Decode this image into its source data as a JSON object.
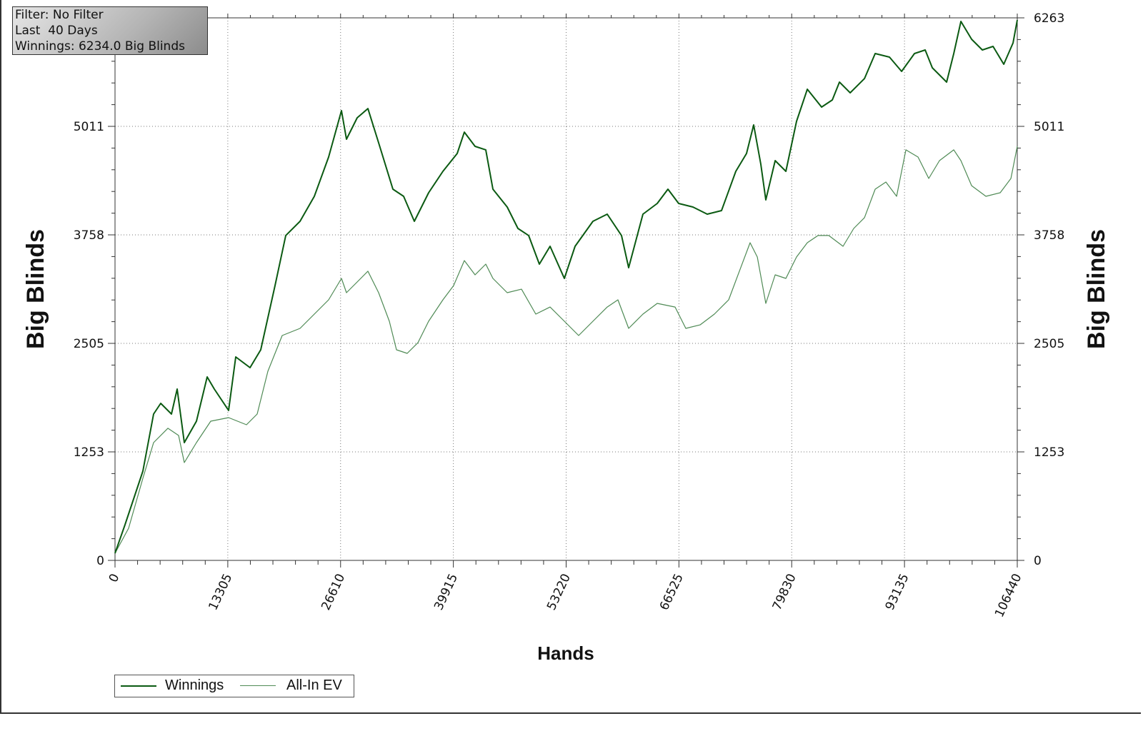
{
  "info_box": {
    "filter": "Filter: No Filter",
    "period": "Last  40 Days",
    "winnings": "Winnings: 6234.0 Big Blinds"
  },
  "chart_data": {
    "type": "line",
    "xlabel": "Hands",
    "ylabel": "Big Blinds",
    "ylabel_right": "Big Blinds",
    "xlim": [
      0,
      106440
    ],
    "ylim": [
      0,
      6263
    ],
    "x_ticks": [
      "0",
      "13305",
      "26610",
      "39915",
      "53220",
      "66525",
      "79830",
      "93135",
      "106440"
    ],
    "y_ticks": [
      "0",
      "1253",
      "2505",
      "3758",
      "5011",
      "6263"
    ],
    "grid": true,
    "legend_placement": "bottom-left",
    "series": [
      {
        "name": "Winnings",
        "color": "#0b5a12",
        "points": [
          [
            0,
            82
          ],
          [
            1180,
            412
          ],
          [
            3287,
            1030
          ],
          [
            4551,
            1689
          ],
          [
            5394,
            1813
          ],
          [
            6658,
            1689
          ],
          [
            7332,
            1978
          ],
          [
            8175,
            1360
          ],
          [
            9608,
            1607
          ],
          [
            10872,
            2118
          ],
          [
            11715,
            1978
          ],
          [
            13400,
            1731
          ],
          [
            14243,
            2349
          ],
          [
            15929,
            2225
          ],
          [
            17193,
            2431
          ],
          [
            18879,
            3173
          ],
          [
            20143,
            3750
          ],
          [
            21829,
            3914
          ],
          [
            23514,
            4203
          ],
          [
            25200,
            4656
          ],
          [
            26717,
            5192
          ],
          [
            27306,
            4862
          ],
          [
            28571,
            5109
          ],
          [
            29835,
            5216
          ],
          [
            31099,
            4821
          ],
          [
            32785,
            4285
          ],
          [
            34049,
            4203
          ],
          [
            35313,
            3914
          ],
          [
            37000,
            4244
          ],
          [
            38684,
            4491
          ],
          [
            40370,
            4697
          ],
          [
            41213,
            4944
          ],
          [
            42477,
            4780
          ],
          [
            43741,
            4739
          ],
          [
            44584,
            4285
          ],
          [
            46270,
            4079
          ],
          [
            47534,
            3832
          ],
          [
            48798,
            3750
          ],
          [
            50062,
            3420
          ],
          [
            51327,
            3626
          ],
          [
            53012,
            3255
          ],
          [
            54276,
            3626
          ],
          [
            56383,
            3914
          ],
          [
            58069,
            3997
          ],
          [
            59755,
            3750
          ],
          [
            60597,
            3379
          ],
          [
            62283,
            3997
          ],
          [
            63969,
            4120
          ],
          [
            65233,
            4285
          ],
          [
            66497,
            4120
          ],
          [
            68182,
            4079
          ],
          [
            69868,
            3997
          ],
          [
            71553,
            4038
          ],
          [
            73239,
            4491
          ],
          [
            74503,
            4697
          ],
          [
            75346,
            5027
          ],
          [
            76189,
            4574
          ],
          [
            76779,
            4162
          ],
          [
            77875,
            4615
          ],
          [
            79139,
            4491
          ],
          [
            80403,
            5068
          ],
          [
            81668,
            5439
          ],
          [
            83353,
            5233
          ],
          [
            84617,
            5315
          ],
          [
            85460,
            5521
          ],
          [
            86724,
            5398
          ],
          [
            88410,
            5562
          ],
          [
            89674,
            5851
          ],
          [
            91359,
            5810
          ],
          [
            92792,
            5645
          ],
          [
            94309,
            5851
          ],
          [
            95573,
            5892
          ],
          [
            96416,
            5686
          ],
          [
            98101,
            5521
          ],
          [
            98944,
            5851
          ],
          [
            99787,
            6222
          ],
          [
            101051,
            6016
          ],
          [
            102316,
            5892
          ],
          [
            103580,
            5933
          ],
          [
            104844,
            5727
          ],
          [
            105940,
            5974
          ],
          [
            106440,
            6238
          ]
        ]
      },
      {
        "name": "All-In EV",
        "color": "#4f8a55",
        "points": [
          [
            0,
            82
          ],
          [
            1601,
            371
          ],
          [
            3287,
            948
          ],
          [
            4551,
            1360
          ],
          [
            6236,
            1525
          ],
          [
            7500,
            1442
          ],
          [
            8175,
            1129
          ],
          [
            9608,
            1360
          ],
          [
            11293,
            1607
          ],
          [
            13400,
            1648
          ],
          [
            15508,
            1566
          ],
          [
            16772,
            1689
          ],
          [
            18036,
            2184
          ],
          [
            19722,
            2596
          ],
          [
            21829,
            2678
          ],
          [
            23514,
            2843
          ],
          [
            25200,
            3008
          ],
          [
            26717,
            3255
          ],
          [
            27306,
            3090
          ],
          [
            28571,
            3214
          ],
          [
            29835,
            3338
          ],
          [
            31099,
            3090
          ],
          [
            32363,
            2761
          ],
          [
            33206,
            2431
          ],
          [
            34470,
            2390
          ],
          [
            35734,
            2513
          ],
          [
            37000,
            2761
          ],
          [
            38684,
            3008
          ],
          [
            39948,
            3173
          ],
          [
            41213,
            3461
          ],
          [
            42477,
            3296
          ],
          [
            43741,
            3420
          ],
          [
            44584,
            3255
          ],
          [
            46270,
            3090
          ],
          [
            47955,
            3131
          ],
          [
            49640,
            2843
          ],
          [
            51327,
            2925
          ],
          [
            53012,
            2761
          ],
          [
            54698,
            2596
          ],
          [
            56383,
            2761
          ],
          [
            58069,
            2925
          ],
          [
            59333,
            3008
          ],
          [
            60597,
            2678
          ],
          [
            62283,
            2843
          ],
          [
            63969,
            2967
          ],
          [
            66075,
            2925
          ],
          [
            67340,
            2678
          ],
          [
            69025,
            2719
          ],
          [
            70711,
            2843
          ],
          [
            72396,
            3008
          ],
          [
            73661,
            3338
          ],
          [
            74925,
            3667
          ],
          [
            75768,
            3502
          ],
          [
            76779,
            2967
          ],
          [
            77875,
            3296
          ],
          [
            79139,
            3255
          ],
          [
            80403,
            3502
          ],
          [
            81668,
            3667
          ],
          [
            82932,
            3750
          ],
          [
            84196,
            3750
          ],
          [
            85882,
            3626
          ],
          [
            87146,
            3832
          ],
          [
            88410,
            3956
          ],
          [
            89674,
            4285
          ],
          [
            90938,
            4368
          ],
          [
            92202,
            4203
          ],
          [
            93298,
            4739
          ],
          [
            94731,
            4656
          ],
          [
            95995,
            4409
          ],
          [
            97259,
            4615
          ],
          [
            98944,
            4739
          ],
          [
            99787,
            4615
          ],
          [
            101051,
            4326
          ],
          [
            102737,
            4203
          ],
          [
            104422,
            4244
          ],
          [
            105686,
            4409
          ],
          [
            106440,
            4780
          ]
        ]
      }
    ]
  }
}
